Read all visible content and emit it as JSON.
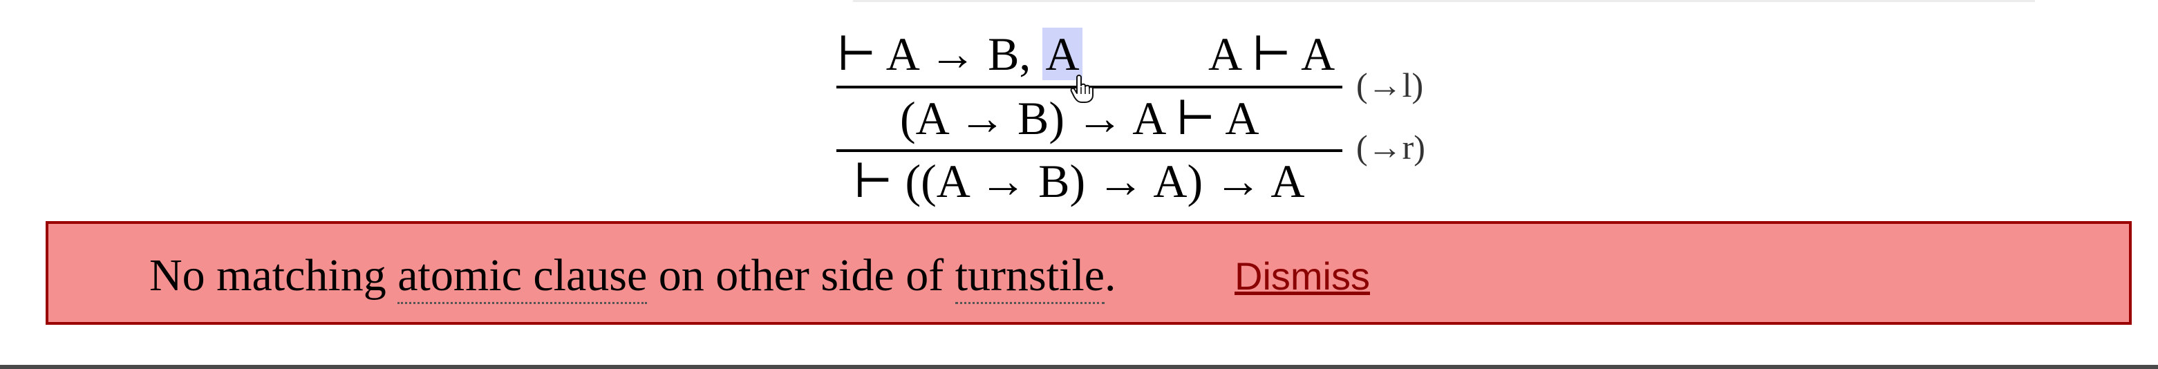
{
  "proof": {
    "top_left_prefix": "⊢ A → B, ",
    "top_left_highlight": "A",
    "top_right": "A ⊢ A",
    "middle": "(A → B) → A ⊢ A",
    "bottom": "⊢ ((A → B) → A) → A",
    "rule_1": "(→l)",
    "rule_2": "(→r)"
  },
  "error": {
    "part_1": "No matching ",
    "term_1": "atomic clause",
    "part_2": " on other side of ",
    "term_2": "turnstile",
    "part_3": ".",
    "dismiss_label": "Dismiss"
  },
  "colors": {
    "banner_bg": "#f49090",
    "banner_border": "#9b0000",
    "link": "#8b0000",
    "highlight": "#cfd4fb"
  },
  "icons": {
    "cursor": "hand-pointer-icon"
  }
}
